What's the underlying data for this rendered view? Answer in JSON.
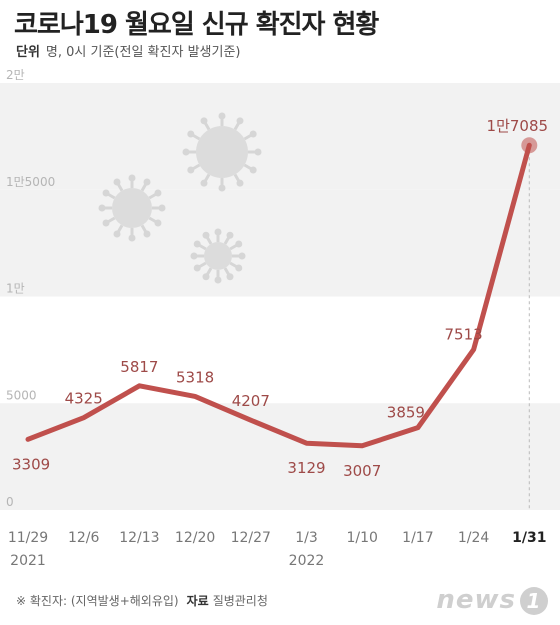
{
  "title": "코로나19 월요일 신규 확진자 현황",
  "unit_label": "단위",
  "unit_text": "명, 0시 기준(전일 확진자 발생기준)",
  "footer": {
    "note": "※ 확진자: (지역발생+해외유입)",
    "source_label": "자료",
    "source": "질병관리청"
  },
  "logo": {
    "text": "news",
    "mark": "1"
  },
  "colors": {
    "line": "#c0504d",
    "label": "#9e4a48",
    "band": "#f2f2f2"
  },
  "chart_data": {
    "type": "line",
    "title": "코로나19 월요일 신규 확진자 현황",
    "xlabel": "",
    "ylabel": "",
    "ylim": [
      0,
      20000
    ],
    "yticks": [
      0,
      5000,
      10000,
      15000,
      20000
    ],
    "ytick_labels": [
      "0",
      "5000",
      "1만",
      "1만5000",
      "2만"
    ],
    "categories": [
      "11/29",
      "12/6",
      "12/13",
      "12/20",
      "12/27",
      "1/3",
      "1/10",
      "1/17",
      "1/24",
      "1/31"
    ],
    "x_year_labels": [
      {
        "index": 0,
        "text": "2021"
      },
      {
        "index": 5,
        "text": "2022"
      }
    ],
    "values": [
      3309,
      4325,
      5817,
      5318,
      4207,
      3129,
      3007,
      3859,
      7513,
      17085
    ],
    "data_labels": [
      "3309",
      "4325",
      "5817",
      "5318",
      "4207",
      "3129",
      "3007",
      "3859",
      "7513",
      "1만7085"
    ],
    "highlight_index": 9,
    "grid": false
  }
}
